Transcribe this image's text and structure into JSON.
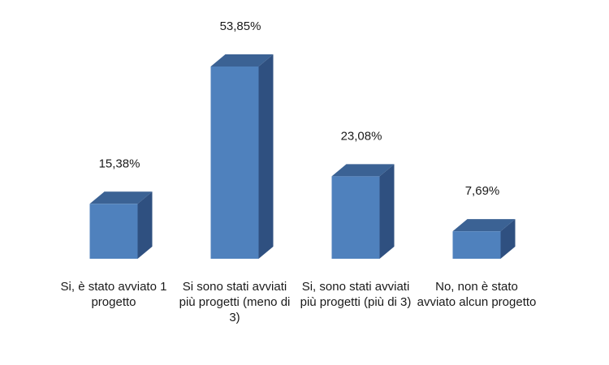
{
  "chart_data": {
    "type": "bar",
    "categories": [
      "Si, è stato avviato 1 progetto",
      "Si sono stati avviati più progetti (meno di 3)",
      "Si, sono stati avviati più progetti (più di 3)",
      "No, non è stato avviato alcun progetto"
    ],
    "values": [
      15.38,
      53.85,
      23.08,
      7.69
    ],
    "data_labels": [
      "15,38%",
      "53,85%",
      "23,08%",
      "7,69%"
    ],
    "unit": "%",
    "ylim": [
      0,
      60
    ],
    "grid": false,
    "legend": "none",
    "style": "3d-column",
    "colors": {
      "front": "#4f81bd",
      "top": "#3b6294",
      "side": "#2f5080"
    }
  }
}
